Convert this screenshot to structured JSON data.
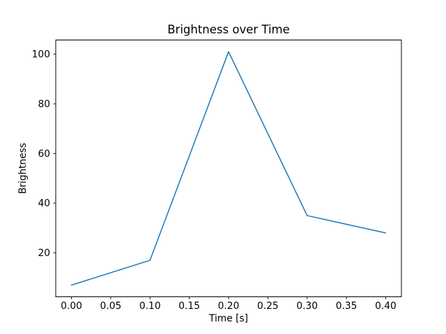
{
  "chart_data": {
    "type": "line",
    "title": "Brightness over Time",
    "xlabel": "Time [s]",
    "ylabel": "Brightness",
    "x": [
      0.0,
      0.1,
      0.2,
      0.3,
      0.4
    ],
    "y": [
      7,
      17,
      101,
      35,
      28
    ],
    "xlim": [
      -0.02,
      0.42
    ],
    "ylim": [
      2.3,
      105.7
    ],
    "xticks": [
      0.0,
      0.05,
      0.1,
      0.15,
      0.2,
      0.25,
      0.3,
      0.35,
      0.4
    ],
    "xtick_labels": [
      "0.00",
      "0.05",
      "0.10",
      "0.15",
      "0.20",
      "0.25",
      "0.30",
      "0.35",
      "0.40"
    ],
    "yticks": [
      20,
      40,
      60,
      80,
      100
    ],
    "ytick_labels": [
      "20",
      "40",
      "60",
      "80",
      "100"
    ],
    "grid": false,
    "line_color": "#1f77b4",
    "line_width": 1.5,
    "spine_color": "#000000",
    "background_color": "#ffffff"
  }
}
